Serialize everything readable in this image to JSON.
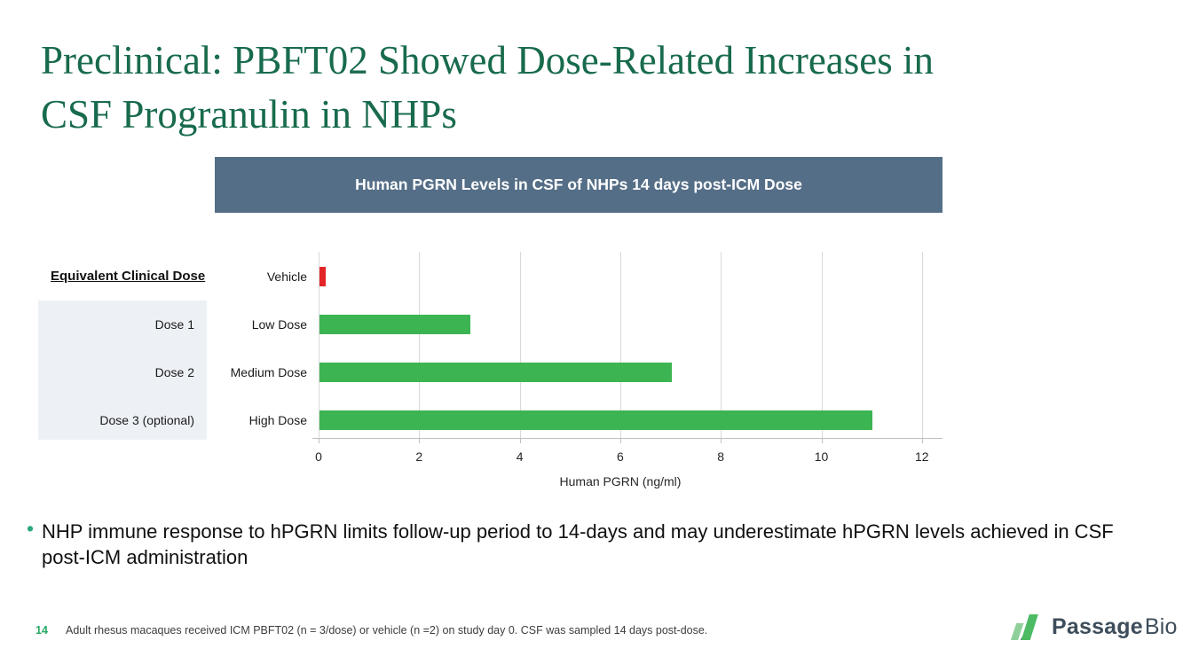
{
  "slide": {
    "title_line1": "Preclinical: PBFT02 Showed Dose-Related Increases in",
    "title_line2": "CSF Progranulin in NHPs"
  },
  "colors": {
    "title_green": "#186b4c",
    "banner_bg": "#556e87",
    "bar_green": "#3cb452",
    "bar_red": "#e32528",
    "dose_box_bg": "#edf1f6",
    "gridline": "#d9d9d9",
    "bullet_dot": "#2aa87e",
    "footer_green": "#27a862",
    "logo_slate": "#3e4d5b"
  },
  "equivalent_dose": {
    "header": "Equivalent Clinical Dose",
    "items": [
      "Dose 1",
      "Dose 2",
      "Dose 3 (optional)"
    ]
  },
  "chart_data": {
    "type": "bar",
    "orientation": "horizontal",
    "title": "Human PGRN Levels in CSF of NHPs 14 days post-ICM Dose",
    "categories": [
      "Vehicle",
      "Low Dose",
      "Medium Dose",
      "High Dose"
    ],
    "values": [
      0.12,
      3,
      7,
      11
    ],
    "bar_colors": [
      "#e32528",
      "#3cb452",
      "#3cb452",
      "#3cb452"
    ],
    "xlabel": "Human PGRN (ng/ml)",
    "xticks": [
      0,
      2,
      4,
      6,
      8,
      10,
      12
    ],
    "xlim": [
      0,
      12.4
    ],
    "grid": true,
    "legend": "none"
  },
  "bullet": {
    "dot": "•",
    "text": "NHP immune response to hPGRN limits follow-up period to 14-days and may underestimate hPGRN levels achieved in CSF post-ICM administration"
  },
  "footer": {
    "page_number": "14",
    "note": "Adult rhesus macaques received ICM PBFT02 (n = 3/dose) or vehicle (n =2) on study day 0. CSF was sampled 14 days post-dose."
  },
  "logo": {
    "name_bold": "Passage",
    "name_light": "Bio"
  }
}
